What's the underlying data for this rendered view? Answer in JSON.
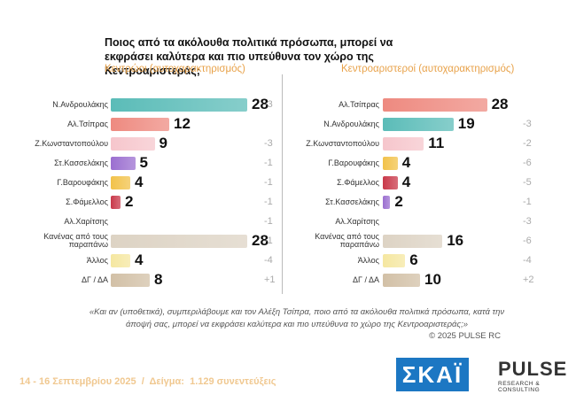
{
  "page": {
    "title": "Ποιος από τα ακόλουθα πολιτικά πρόσωπα, μπορεί να εκφράσει καλύτερα και πιο υπεύθυνα τον χώρο της Κεντροαριστεράς;",
    "note": "«Και αν (υποθετικά), συμπεριλάβουμε και τον Αλέξη Τσίπρα, ποιο από τα ακόλουθα πολιτικά πρόσωπα, κατά την άποψή σας, μπορεί να εκφράσει καλύτερα και πιο υπεύθυνα το χώρο της Κεντροαριστεράς;»",
    "copyright": "© 2025 PULSE RC",
    "footer": "14 - 16 Σεπτεμβρίου 2025  /  Δείγμα:  1.129 συνεντεύξεις",
    "logo_left": "ΣΚΑΪ",
    "logo_right": "PULSE",
    "logo_right_sub": "RESEARCH & CONSULTING"
  },
  "chart_data": [
    {
      "type": "bar",
      "title": "Κεντρώοι (αυτοχαρακτηρισμός)",
      "categories": [
        "Ν.Ανδρουλάκης",
        "Αλ.Τσίπρας",
        "Ζ.Κωνσταντοπούλου",
        "Στ.Κασσελάκης",
        "Γ.Βαρουφάκης",
        "Σ.Φάμελλος",
        "Αλ.Χαρίτσης",
        "Κανένας από τους παραπάνω",
        "Άλλος",
        "ΔΓ / ΔΑ"
      ],
      "values": [
        28,
        12,
        9,
        5,
        4,
        2,
        null,
        28,
        4,
        8
      ],
      "colors": [
        "#5bbcb8",
        "#ee8a80",
        "#f6c6cc",
        "#9b6fd0",
        "#f2c24a",
        "#c9394a",
        "#cccccc",
        "#ddd3c4",
        "#f5e7a0",
        "#d2c0a6"
      ],
      "changes": [
        -3,
        null,
        -3,
        -1,
        -1,
        -1,
        -1,
        -1,
        -4,
        1
      ],
      "change_labels": [
        "-3",
        null,
        "-3",
        "-1",
        "-1",
        "-1",
        "-1",
        "-1",
        "-4",
        "+1"
      ]
    },
    {
      "type": "bar",
      "title": "Κεντροαριστεροί (αυτοχαρακτηρισμός)",
      "categories": [
        "Αλ.Τσίπρας",
        "Ν.Ανδρουλάκης",
        "Ζ.Κωνσταντοπούλου",
        "Γ.Βαρουφάκης",
        "Σ.Φάμελλος",
        "Στ.Κασσελάκης",
        "Αλ.Χαρίτσης",
        "Κανένας από τους παραπάνω",
        "Άλλος",
        "ΔΓ / ΔΑ"
      ],
      "values": [
        28,
        19,
        11,
        4,
        4,
        2,
        null,
        16,
        6,
        10
      ],
      "colors": [
        "#ee8a80",
        "#5bbcb8",
        "#f6c6cc",
        "#f2c24a",
        "#c9394a",
        "#9b6fd0",
        "#cccccc",
        "#ddd3c4",
        "#f5e7a0",
        "#d2c0a6"
      ],
      "changes": [
        null,
        -3,
        -2,
        -6,
        -5,
        -1,
        -3,
        -6,
        -4,
        2
      ],
      "change_labels": [
        null,
        "-3",
        "-2",
        "-6",
        "-5",
        "-1",
        "-3",
        "-6",
        "-4",
        "+2"
      ]
    }
  ]
}
